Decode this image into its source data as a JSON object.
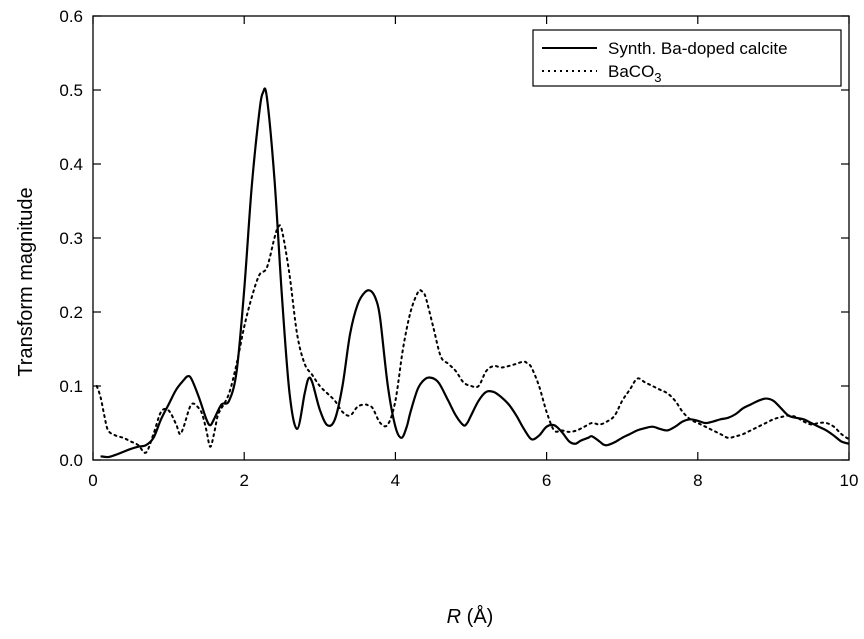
{
  "chart_data": {
    "type": "line",
    "title": "",
    "xlabel": {
      "italic": "R",
      "rest": " (Å)"
    },
    "ylabel": "Transform magnitude",
    "xlim": [
      0,
      10
    ],
    "ylim": [
      0,
      0.6
    ],
    "xticks": [
      0,
      2,
      4,
      6,
      8,
      10
    ],
    "yticks": [
      0.0,
      0.1,
      0.2,
      0.3,
      0.4,
      0.5,
      0.6
    ],
    "ytick_labels": [
      "0.0",
      "0.1",
      "0.2",
      "0.3",
      "0.4",
      "0.5",
      "0.6"
    ],
    "grid": false,
    "legend_position": "top-right",
    "series": [
      {
        "name": "Synth. Ba-doped calcite",
        "style": "solid",
        "color": "#000000",
        "x": [
          0.1,
          0.2,
          0.3,
          0.4,
          0.5,
          0.6,
          0.7,
          0.8,
          0.9,
          1.0,
          1.1,
          1.2,
          1.25,
          1.3,
          1.4,
          1.5,
          1.55,
          1.6,
          1.7,
          1.8,
          1.9,
          2.0,
          2.1,
          2.2,
          2.25,
          2.3,
          2.4,
          2.5,
          2.6,
          2.7,
          2.8,
          2.85,
          2.9,
          3.0,
          3.1,
          3.2,
          3.3,
          3.4,
          3.5,
          3.6,
          3.68,
          3.75,
          3.8,
          3.9,
          4.0,
          4.08,
          4.15,
          4.2,
          4.3,
          4.4,
          4.48,
          4.55,
          4.6,
          4.7,
          4.8,
          4.9,
          4.95,
          5.0,
          5.1,
          5.2,
          5.3,
          5.4,
          5.5,
          5.6,
          5.7,
          5.8,
          5.9,
          6.0,
          6.1,
          6.2,
          6.3,
          6.38,
          6.45,
          6.55,
          6.6,
          6.7,
          6.75,
          6.8,
          6.9,
          7.0,
          7.1,
          7.2,
          7.3,
          7.4,
          7.5,
          7.6,
          7.7,
          7.8,
          7.9,
          8.0,
          8.1,
          8.2,
          8.3,
          8.4,
          8.5,
          8.6,
          8.7,
          8.8,
          8.9,
          9.0,
          9.1,
          9.2,
          9.3,
          9.4,
          9.5,
          9.6,
          9.7,
          9.8,
          9.9,
          10.0
        ],
        "y": [
          0.005,
          0.004,
          0.007,
          0.011,
          0.015,
          0.018,
          0.02,
          0.03,
          0.055,
          0.075,
          0.095,
          0.108,
          0.113,
          0.11,
          0.085,
          0.055,
          0.047,
          0.055,
          0.075,
          0.08,
          0.12,
          0.23,
          0.37,
          0.47,
          0.497,
          0.49,
          0.38,
          0.22,
          0.09,
          0.042,
          0.09,
          0.11,
          0.105,
          0.068,
          0.047,
          0.055,
          0.1,
          0.17,
          0.21,
          0.227,
          0.228,
          0.215,
          0.19,
          0.1,
          0.045,
          0.03,
          0.045,
          0.065,
          0.097,
          0.11,
          0.111,
          0.107,
          0.1,
          0.08,
          0.06,
          0.047,
          0.05,
          0.06,
          0.08,
          0.092,
          0.092,
          0.085,
          0.075,
          0.06,
          0.042,
          0.028,
          0.033,
          0.045,
          0.047,
          0.038,
          0.025,
          0.022,
          0.026,
          0.03,
          0.032,
          0.025,
          0.021,
          0.02,
          0.024,
          0.03,
          0.035,
          0.04,
          0.043,
          0.045,
          0.042,
          0.04,
          0.045,
          0.052,
          0.055,
          0.053,
          0.05,
          0.052,
          0.055,
          0.057,
          0.062,
          0.07,
          0.075,
          0.08,
          0.083,
          0.08,
          0.07,
          0.06,
          0.057,
          0.055,
          0.05,
          0.045,
          0.04,
          0.033,
          0.025,
          0.022
        ]
      },
      {
        "name": "BaCO3",
        "name_parts": [
          "BaCO",
          "3"
        ],
        "style": "dotted",
        "color": "#000000",
        "x": [
          0.05,
          0.1,
          0.15,
          0.2,
          0.3,
          0.4,
          0.5,
          0.6,
          0.7,
          0.8,
          0.9,
          1.0,
          1.1,
          1.15,
          1.2,
          1.3,
          1.4,
          1.45,
          1.5,
          1.55,
          1.6,
          1.65,
          1.7,
          1.8,
          1.9,
          2.0,
          2.1,
          2.2,
          2.3,
          2.4,
          2.45,
          2.5,
          2.6,
          2.7,
          2.8,
          2.9,
          3.0,
          3.1,
          3.2,
          3.3,
          3.4,
          3.5,
          3.6,
          3.65,
          3.7,
          3.8,
          3.9,
          4.0,
          4.1,
          4.2,
          4.3,
          4.35,
          4.4,
          4.5,
          4.6,
          4.7,
          4.8,
          4.9,
          5.0,
          5.1,
          5.2,
          5.3,
          5.4,
          5.5,
          5.6,
          5.7,
          5.75,
          5.8,
          5.9,
          6.0,
          6.1,
          6.2,
          6.3,
          6.4,
          6.5,
          6.6,
          6.7,
          6.8,
          6.9,
          7.0,
          7.1,
          7.2,
          7.3,
          7.4,
          7.5,
          7.6,
          7.7,
          7.8,
          7.9,
          8.0,
          8.1,
          8.2,
          8.3,
          8.4,
          8.5,
          8.6,
          8.7,
          8.8,
          8.9,
          9.0,
          9.1,
          9.2,
          9.3,
          9.4,
          9.5,
          9.6,
          9.7,
          9.8,
          9.9,
          10.0
        ],
        "y": [
          0.1,
          0.085,
          0.06,
          0.04,
          0.033,
          0.03,
          0.025,
          0.02,
          0.01,
          0.035,
          0.065,
          0.067,
          0.048,
          0.035,
          0.045,
          0.075,
          0.07,
          0.06,
          0.04,
          0.018,
          0.035,
          0.06,
          0.07,
          0.09,
          0.13,
          0.18,
          0.22,
          0.25,
          0.26,
          0.3,
          0.315,
          0.31,
          0.25,
          0.17,
          0.13,
          0.115,
          0.1,
          0.09,
          0.08,
          0.065,
          0.06,
          0.072,
          0.075,
          0.073,
          0.07,
          0.05,
          0.048,
          0.08,
          0.15,
          0.2,
          0.227,
          0.228,
          0.22,
          0.18,
          0.14,
          0.13,
          0.12,
          0.105,
          0.1,
          0.1,
          0.12,
          0.127,
          0.125,
          0.127,
          0.13,
          0.133,
          0.13,
          0.125,
          0.1,
          0.065,
          0.04,
          0.04,
          0.038,
          0.04,
          0.045,
          0.05,
          0.048,
          0.052,
          0.06,
          0.08,
          0.095,
          0.11,
          0.105,
          0.1,
          0.095,
          0.09,
          0.08,
          0.065,
          0.055,
          0.05,
          0.045,
          0.04,
          0.035,
          0.03,
          0.032,
          0.035,
          0.04,
          0.045,
          0.05,
          0.055,
          0.058,
          0.06,
          0.058,
          0.052,
          0.048,
          0.05,
          0.05,
          0.045,
          0.035,
          0.028
        ]
      }
    ]
  }
}
